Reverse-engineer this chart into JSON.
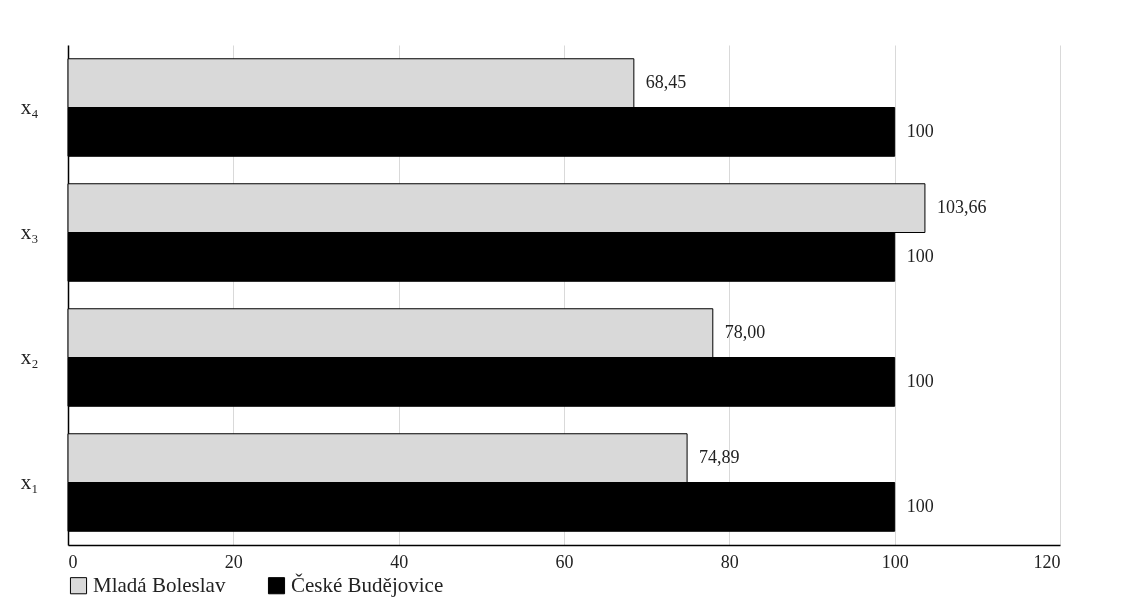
{
  "chart_data": {
    "type": "bar",
    "orientation": "horizontal",
    "categories": [
      "x₄",
      "x₃",
      "x₂",
      "x₁"
    ],
    "series": [
      {
        "name": "Mladá Boleslav",
        "color": "#d9d9d9",
        "values": [
          68.45,
          103.66,
          78.0,
          74.89
        ],
        "value_labels": [
          "68,45",
          "103,66",
          "78,00",
          "74,89"
        ]
      },
      {
        "name": "České Budějovice",
        "color": "#000000",
        "values": [
          100,
          100,
          100,
          100
        ],
        "value_labels": [
          "100",
          "100",
          "100",
          "100"
        ]
      }
    ],
    "xlim": [
      0,
      120
    ],
    "xticks": [
      0,
      20,
      40,
      60,
      80,
      100,
      120
    ],
    "grid": "x",
    "legend": "bottom"
  }
}
